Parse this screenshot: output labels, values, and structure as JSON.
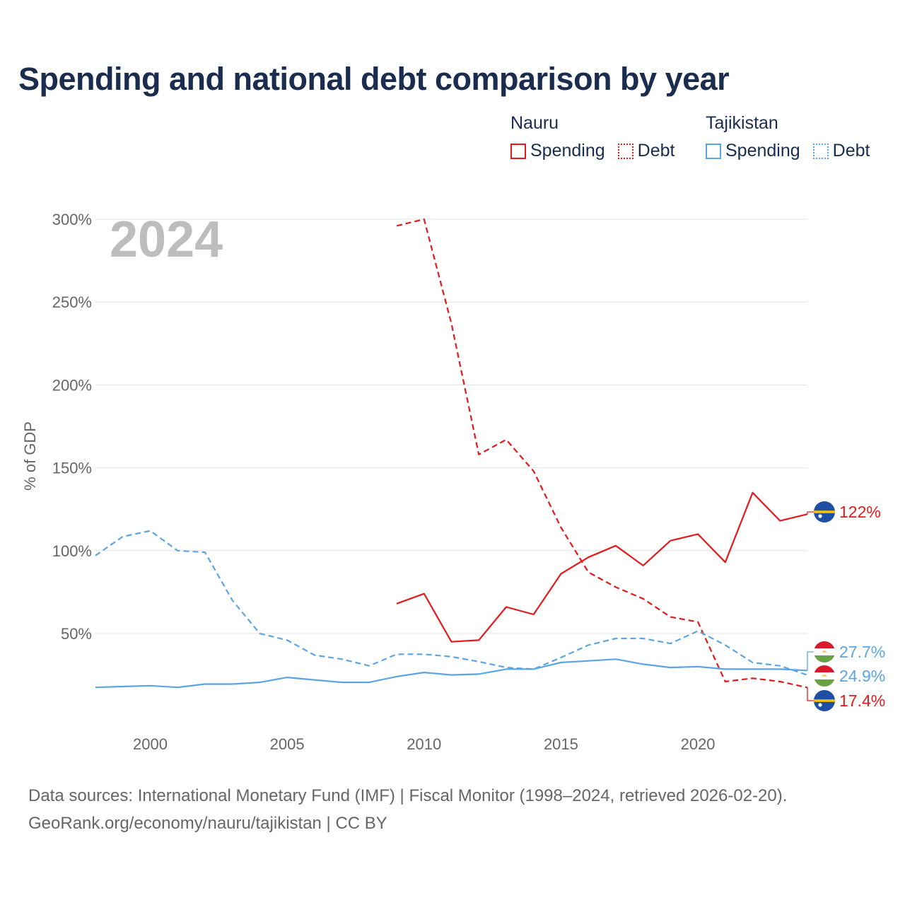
{
  "title": "Spending and national debt comparison by year",
  "legend": {
    "groups": [
      {
        "country": "Nauru",
        "color": "#e31a1c",
        "items": [
          {
            "label": "Spending",
            "style": "solid"
          },
          {
            "label": "Debt",
            "style": "dotted"
          }
        ]
      },
      {
        "country": "Tajikistan",
        "color": "#5ca5e5",
        "items": [
          {
            "label": "Spending",
            "style": "solid"
          },
          {
            "label": "Debt",
            "style": "dotted"
          }
        ]
      }
    ]
  },
  "source": {
    "line1": "Data sources: International Monetary Fund (IMF) | Fiscal Monitor (1998–2024, retrieved 2026-02-20).",
    "line2": "GeoRank.org/economy/nauru/tajikistan | CC BY"
  },
  "chart_data": {
    "type": "line",
    "title": "Spending and national debt comparison by year",
    "year_label": "2024",
    "xlabel": "",
    "ylabel": "% of GDP",
    "xlim": [
      1998,
      2024
    ],
    "ylim": [
      -25,
      300
    ],
    "grid": true,
    "x_ticks": [
      {
        "value": 2000,
        "label": "2000"
      },
      {
        "value": 2005,
        "label": "2005"
      },
      {
        "value": 2010,
        "label": "2010"
      },
      {
        "value": 2015,
        "label": "2015"
      },
      {
        "value": 2020,
        "label": "2020"
      }
    ],
    "y_ticks": [
      {
        "value": 50,
        "label": "50%"
      },
      {
        "value": 100,
        "label": "100%"
      },
      {
        "value": 150,
        "label": "150%"
      },
      {
        "value": 200,
        "label": "200%"
      },
      {
        "value": 250,
        "label": "250%"
      },
      {
        "value": 300,
        "label": "300%"
      }
    ],
    "series": [
      {
        "name": "Nauru Spending",
        "country": "Nauru",
        "metric": "Spending",
        "color": "#e31a1c",
        "dash": "solid",
        "x": [
          2009,
          2010,
          2011,
          2012,
          2013,
          2014,
          2015,
          2016,
          2017,
          2018,
          2019,
          2020,
          2021,
          2022,
          2023,
          2024
        ],
        "values": [
          68,
          74,
          45,
          46,
          66,
          61.5,
          86,
          96,
          103,
          91,
          106,
          110,
          93,
          135,
          118,
          122
        ]
      },
      {
        "name": "Nauru Debt",
        "country": "Nauru",
        "metric": "Debt",
        "color": "#e31a1c",
        "dash": "dashed",
        "x": [
          2009,
          2010,
          2011,
          2012,
          2013,
          2014,
          2015,
          2016,
          2017,
          2018,
          2019,
          2020,
          2021,
          2022,
          2023,
          2024
        ],
        "values": [
          296,
          300,
          237,
          158,
          167,
          148,
          114,
          87,
          78,
          71,
          60,
          57,
          21,
          23,
          21,
          17.4
        ]
      },
      {
        "name": "Tajikistan Spending",
        "country": "Tajikistan",
        "metric": "Spending",
        "color": "#5ca5e5",
        "dash": "solid",
        "x": [
          1998,
          1999,
          2000,
          2001,
          2002,
          2003,
          2004,
          2005,
          2006,
          2007,
          2008,
          2009,
          2010,
          2011,
          2012,
          2013,
          2014,
          2015,
          2016,
          2017,
          2018,
          2019,
          2020,
          2021,
          2022,
          2023,
          2024
        ],
        "values": [
          17.5,
          18,
          18.5,
          17.5,
          19.5,
          19.5,
          20.5,
          23.5,
          22,
          20.5,
          20.5,
          24,
          26.5,
          25,
          25.5,
          28.5,
          28.5,
          32.5,
          33.5,
          34.5,
          31.5,
          29.5,
          30,
          28.5,
          28.5,
          28.5,
          27.7
        ]
      },
      {
        "name": "Tajikistan Debt",
        "country": "Tajikistan",
        "metric": "Debt",
        "color": "#5ca5e5",
        "dash": "dashed",
        "x": [
          1998,
          1999,
          2000,
          2001,
          2002,
          2003,
          2004,
          2005,
          2006,
          2007,
          2008,
          2009,
          2010,
          2011,
          2012,
          2013,
          2014,
          2015,
          2016,
          2017,
          2018,
          2019,
          2020,
          2021,
          2022,
          2023,
          2024
        ],
        "values": [
          97,
          108.5,
          112,
          100,
          99,
          70,
          50,
          46,
          37,
          34.5,
          30.5,
          37.5,
          37.5,
          36,
          33,
          29.5,
          28.5,
          35.5,
          43,
          47,
          47,
          44,
          51.5,
          43,
          32.5,
          30.5,
          24.9
        ]
      }
    ],
    "end_labels": [
      {
        "series": "Nauru Spending",
        "label": "122%",
        "value": 122,
        "flag": "nauru"
      },
      {
        "series": "Tajikistan Spending",
        "label": "27.7%",
        "value": 27.7,
        "flag": "tajikistan"
      },
      {
        "series": "Tajikistan Debt",
        "label": "24.9%",
        "value": 24.9,
        "flag": "tajikistan"
      },
      {
        "series": "Nauru Debt",
        "label": "17.4%",
        "value": 17.4,
        "flag": "nauru"
      }
    ]
  }
}
